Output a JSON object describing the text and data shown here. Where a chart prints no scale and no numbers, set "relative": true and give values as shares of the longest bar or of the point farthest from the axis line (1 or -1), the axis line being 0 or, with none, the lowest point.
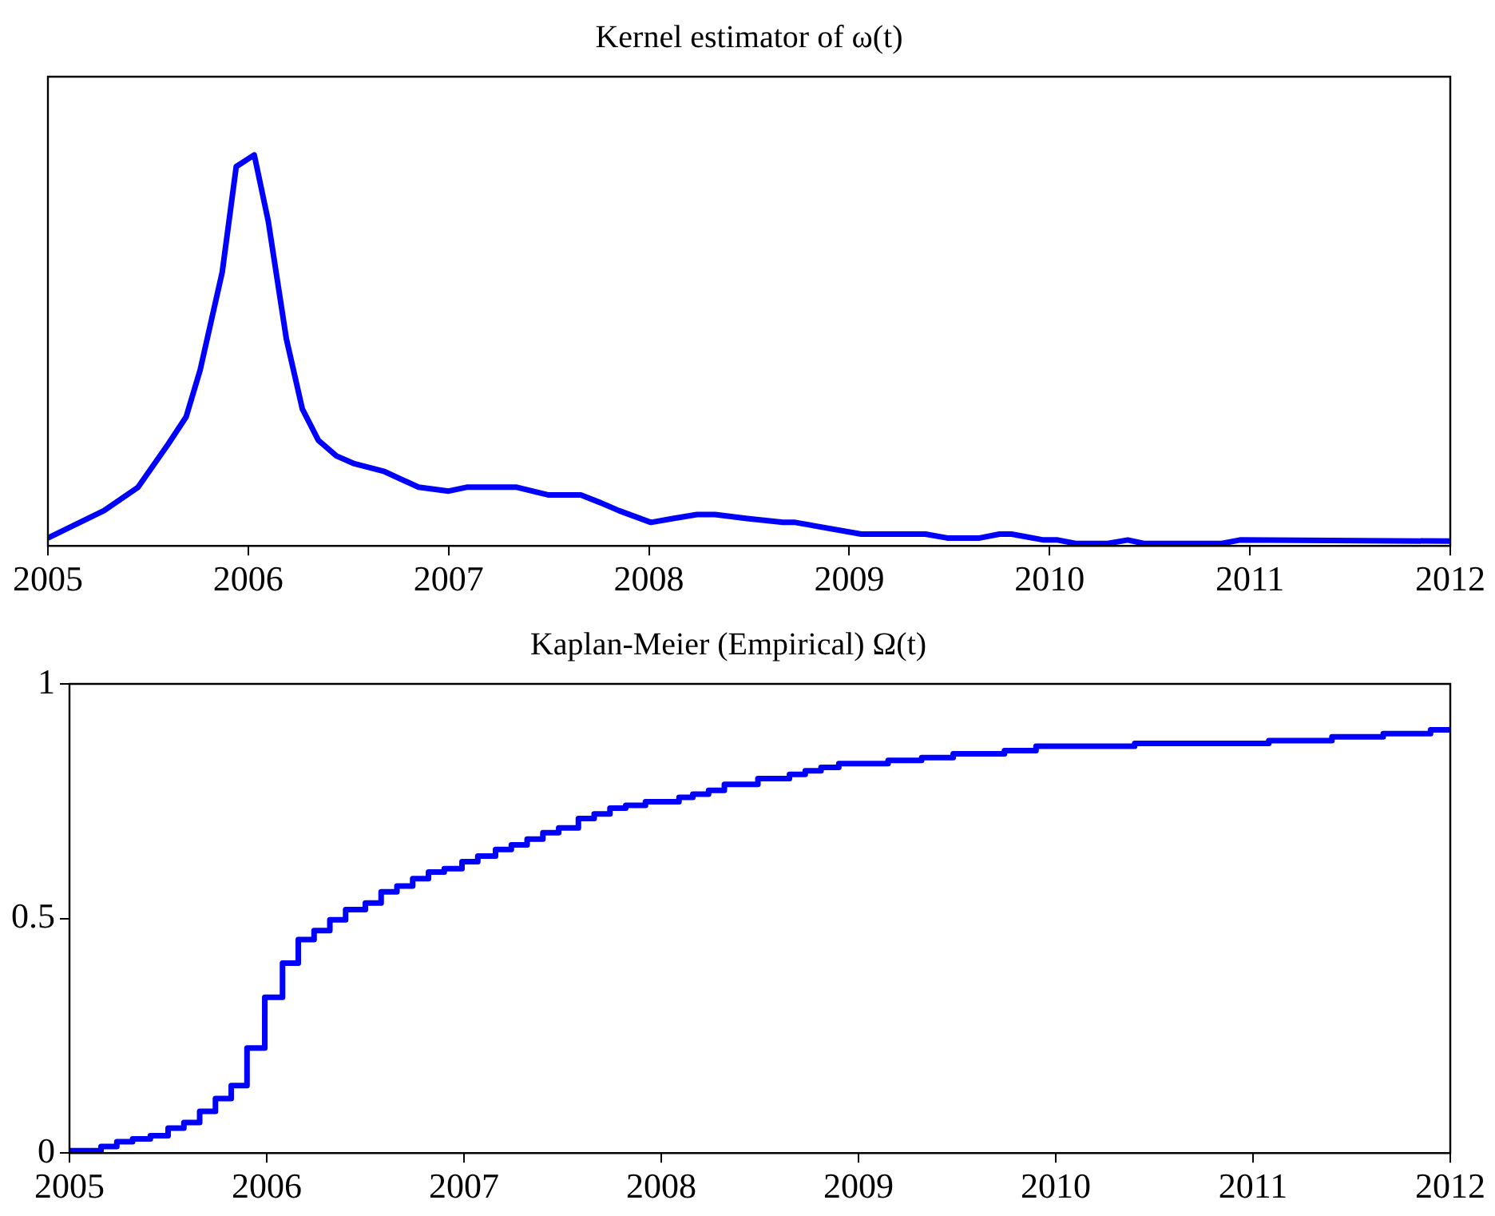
{
  "chart_data": [
    {
      "type": "line",
      "title": "Kernel estimator of ω(t)",
      "relative": true,
      "color": "#0000ff",
      "xlim": [
        2005,
        2012
      ],
      "xticks": [
        2005,
        2006,
        2007,
        2008,
        2009,
        2010,
        2011,
        2012
      ],
      "x": [
        2005.0,
        2005.2,
        2005.28,
        2005.45,
        2005.6,
        2005.69,
        2005.76,
        2005.87,
        2005.94,
        2006.03,
        2006.1,
        2006.19,
        2006.27,
        2006.35,
        2006.44,
        2006.53,
        2006.68,
        2006.85,
        2007.0,
        2007.09,
        2007.34,
        2007.5,
        2007.66,
        2007.76,
        2007.85,
        2008.01,
        2008.12,
        2008.24,
        2008.33,
        2008.49,
        2008.67,
        2008.73,
        2009.06,
        2009.38,
        2009.49,
        2009.65,
        2009.75,
        2009.81,
        2009.97,
        2010.04,
        2010.13,
        2010.29,
        2010.39,
        2010.47,
        2010.86,
        2010.95,
        2012.0
      ],
      "values": [
        0.02,
        0.07,
        0.09,
        0.15,
        0.26,
        0.33,
        0.45,
        0.7,
        0.97,
        1.0,
        0.83,
        0.53,
        0.35,
        0.27,
        0.23,
        0.21,
        0.19,
        0.15,
        0.14,
        0.15,
        0.15,
        0.13,
        0.13,
        0.11,
        0.09,
        0.06,
        0.07,
        0.08,
        0.08,
        0.07,
        0.06,
        0.06,
        0.03,
        0.03,
        0.02,
        0.02,
        0.03,
        0.03,
        0.015,
        0.015,
        0.006,
        0.006,
        0.015,
        0.006,
        0.006,
        0.015,
        0.012
      ]
    },
    {
      "type": "step",
      "title": "Kaplan-Meier (Empirical) Ω(t)",
      "color": "#0000ff",
      "xlim": [
        2005,
        2012
      ],
      "xticks": [
        2005,
        2006,
        2007,
        2008,
        2009,
        2010,
        2011,
        2012
      ],
      "ylim": [
        0,
        1
      ],
      "yticks": [
        0,
        0.5,
        1
      ],
      "x": [
        2005.0,
        2005.16,
        2005.24,
        2005.32,
        2005.41,
        2005.5,
        2005.58,
        2005.66,
        2005.74,
        2005.82,
        2005.9,
        2005.99,
        2006.08,
        2006.16,
        2006.24,
        2006.32,
        2006.4,
        2006.5,
        2006.58,
        2006.66,
        2006.74,
        2006.82,
        2006.9,
        2006.99,
        2007.07,
        2007.16,
        2007.24,
        2007.32,
        2007.4,
        2007.48,
        2007.58,
        2007.66,
        2007.74,
        2007.82,
        2007.92,
        2008.09,
        2008.16,
        2008.24,
        2008.32,
        2008.49,
        2008.65,
        2008.73,
        2008.81,
        2008.9,
        2009.15,
        2009.32,
        2009.48,
        2009.74,
        2009.9,
        2010.4,
        2011.08,
        2011.4,
        2011.66,
        2011.9,
        2012.0
      ],
      "values": [
        0.005,
        0.014,
        0.024,
        0.03,
        0.037,
        0.053,
        0.065,
        0.089,
        0.116,
        0.144,
        0.224,
        0.332,
        0.405,
        0.455,
        0.474,
        0.497,
        0.519,
        0.533,
        0.557,
        0.569,
        0.585,
        0.599,
        0.606,
        0.621,
        0.633,
        0.647,
        0.657,
        0.669,
        0.683,
        0.693,
        0.713,
        0.723,
        0.735,
        0.741,
        0.749,
        0.758,
        0.765,
        0.773,
        0.786,
        0.798,
        0.807,
        0.815,
        0.822,
        0.83,
        0.837,
        0.843,
        0.851,
        0.858,
        0.867,
        0.873,
        0.879,
        0.887,
        0.894,
        0.902,
        0.902
      ]
    }
  ]
}
